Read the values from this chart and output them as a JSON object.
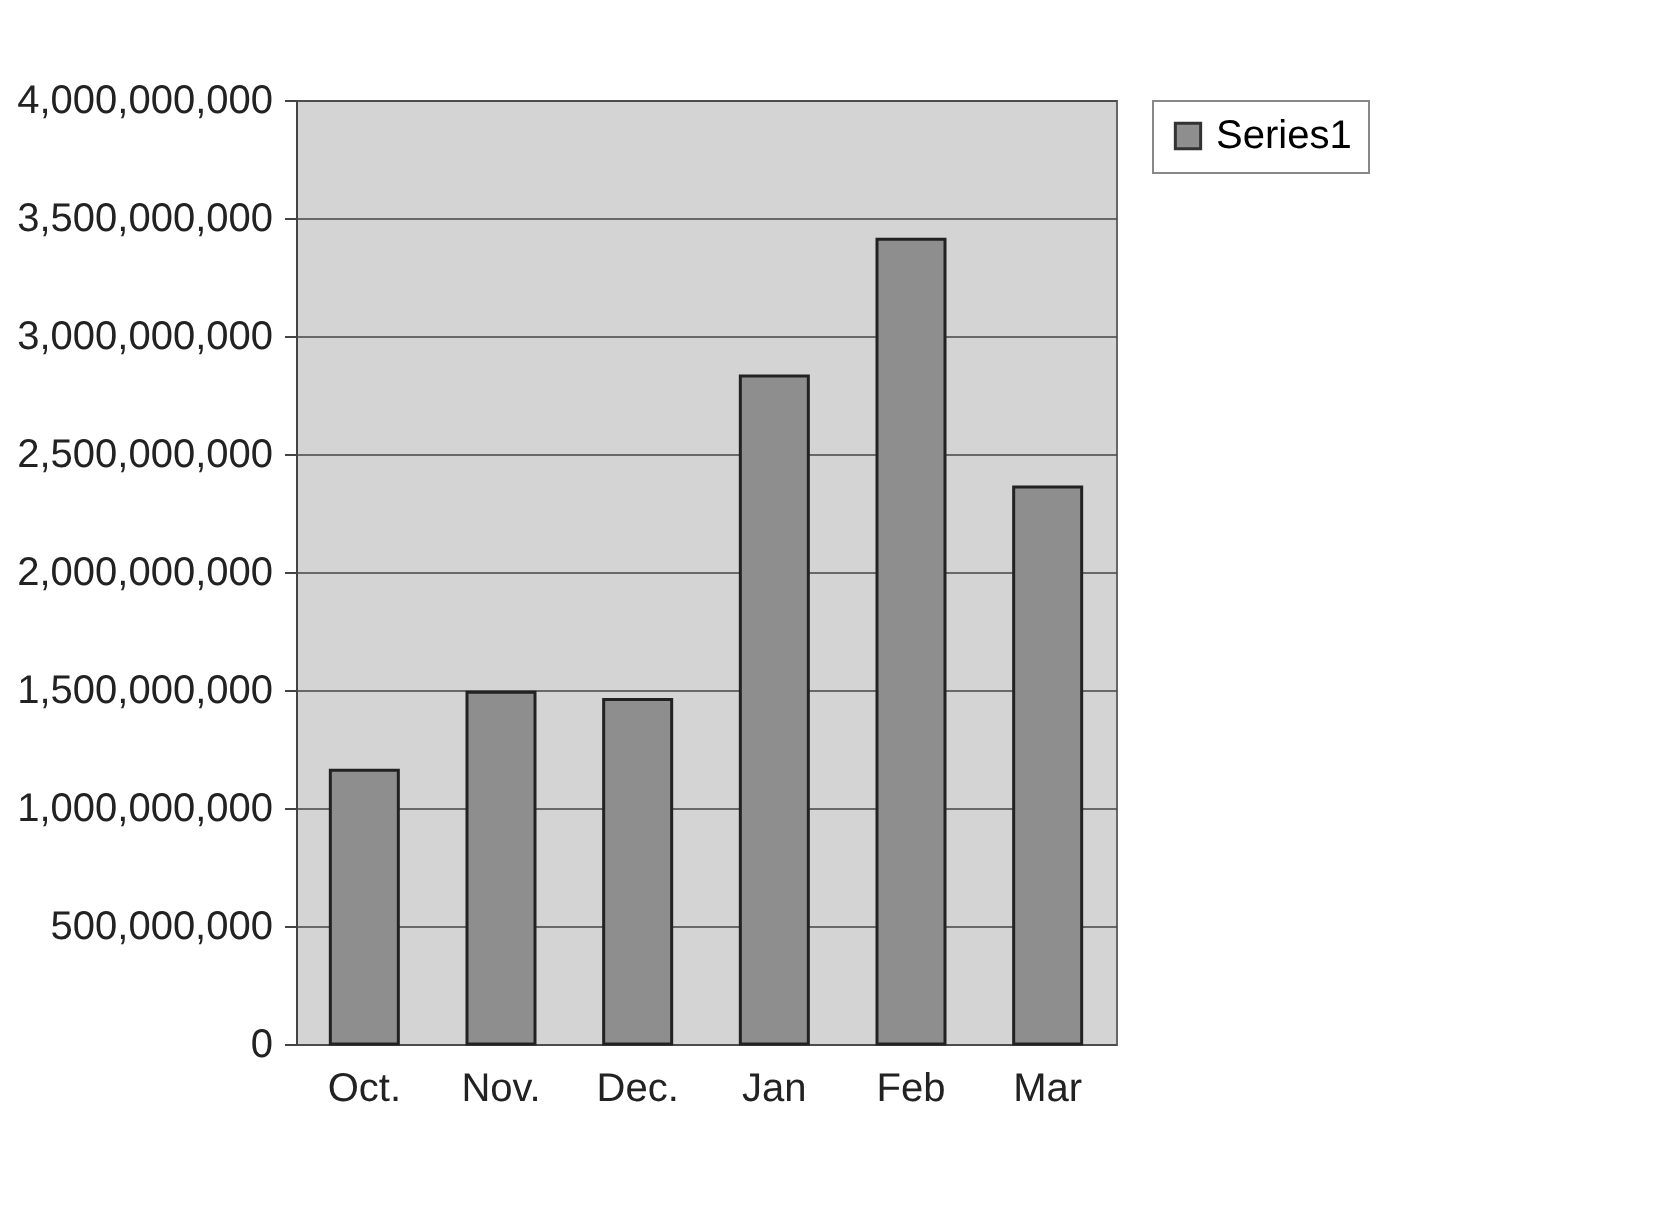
{
  "chart_data": {
    "type": "bar",
    "categories": [
      "Oct.",
      "Nov.",
      "Dec.",
      "Jan",
      "Feb",
      "Mar"
    ],
    "series": [
      {
        "name": "Series1",
        "color": "#8e8e8e",
        "values": [
          1160000000,
          1490000000,
          1460000000,
          2830000000,
          3410000000,
          2360000000
        ]
      }
    ],
    "ylim": [
      0,
      4000000000
    ],
    "yticks": [
      {
        "value": 0,
        "label": "0"
      },
      {
        "value": 500000000,
        "label": "500,000,000"
      },
      {
        "value": 1000000000,
        "label": "1,000,000,000"
      },
      {
        "value": 1500000000,
        "label": "1,500,000,000"
      },
      {
        "value": 2000000000,
        "label": "2,000,000,000"
      },
      {
        "value": 2500000000,
        "label": "2,500,000,000"
      },
      {
        "value": 3000000000,
        "label": "3,000,000,000"
      },
      {
        "value": 3500000000,
        "label": "3,500,000,000"
      },
      {
        "value": 4000000000,
        "label": "4,000,000,000"
      }
    ],
    "grid": "y",
    "legend": "right"
  }
}
